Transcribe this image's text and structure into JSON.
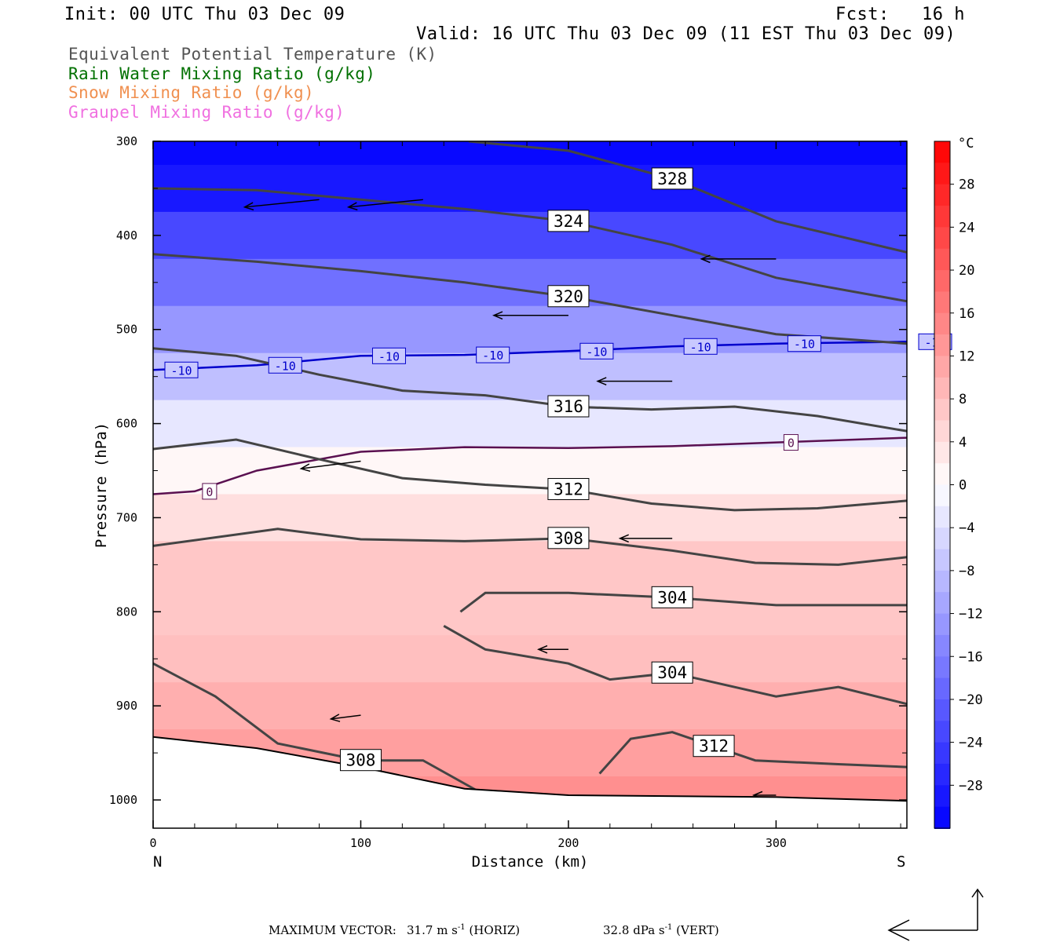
{
  "header": {
    "init": "Init: 00 UTC Thu 03 Dec 09",
    "fcst": "Fcst:   16 h",
    "valid": "Valid: 16 UTC Thu 03 Dec 09 (11 EST Thu 03 Dec 09)"
  },
  "fields": [
    {
      "label": "Equivalent Potential Temperature (K)",
      "color": "#555555"
    },
    {
      "label": "Rain Water Mixing Ratio (g/kg)",
      "color": "#007000"
    },
    {
      "label": "Snow Mixing Ratio (g/kg)",
      "color": "#f09050"
    },
    {
      "label": "Graupel Mixing Ratio (g/kg)",
      "color": "#f070e0"
    }
  ],
  "chart_data": {
    "type": "heatmap",
    "title": "",
    "xlabel": "Distance (km)",
    "ylabel": "Pressure (hPa)",
    "xlim": [
      0,
      363
    ],
    "ylim": [
      1030,
      300
    ],
    "y_scale": "linear, inverted",
    "x_ticks": [
      0,
      100,
      200,
      300
    ],
    "y_ticks": [
      300,
      400,
      500,
      600,
      700,
      800,
      900,
      1000
    ],
    "x_end_labels": {
      "left": "N",
      "right": "S"
    },
    "colorbar": {
      "unit": "°C",
      "ticks": [
        28,
        24,
        20,
        16,
        12,
        8,
        4,
        0,
        -4,
        -8,
        -12,
        -16,
        -20,
        -24,
        -28
      ],
      "range": [
        -32,
        32
      ]
    },
    "temperature_profile_degC": [
      {
        "p": 300,
        "t": -31
      },
      {
        "p": 350,
        "t": -29
      },
      {
        "p": 400,
        "t": -23
      },
      {
        "p": 450,
        "t": -18
      },
      {
        "p": 500,
        "t": -13
      },
      {
        "p": 550,
        "t": -8
      },
      {
        "p": 600,
        "t": -3
      },
      {
        "p": 650,
        "t": 1
      },
      {
        "p": 700,
        "t": 4
      },
      {
        "p": 750,
        "t": 7
      },
      {
        "p": 800,
        "t": 7
      },
      {
        "p": 850,
        "t": 8
      },
      {
        "p": 900,
        "t": 10
      },
      {
        "p": 950,
        "t": 12
      },
      {
        "p": 1000,
        "t": 14
      }
    ],
    "theta_e_contours": [
      {
        "value": 328,
        "points": [
          [
            152,
            300
          ],
          [
            200,
            310
          ],
          [
            250,
            340
          ],
          [
            300,
            385
          ],
          [
            363,
            418
          ]
        ]
      },
      {
        "value": 324,
        "points": [
          [
            0,
            350
          ],
          [
            50,
            352
          ],
          [
            100,
            362
          ],
          [
            150,
            372
          ],
          [
            200,
            385
          ],
          [
            250,
            410
          ],
          [
            300,
            445
          ],
          [
            363,
            470
          ]
        ]
      },
      {
        "value": 320,
        "points": [
          [
            0,
            420
          ],
          [
            50,
            428
          ],
          [
            100,
            438
          ],
          [
            150,
            450
          ],
          [
            200,
            465
          ],
          [
            250,
            485
          ],
          [
            300,
            505
          ],
          [
            363,
            515
          ]
        ]
      },
      {
        "value": 316,
        "points": [
          [
            0,
            520
          ],
          [
            40,
            528
          ],
          [
            80,
            548
          ],
          [
            120,
            565
          ],
          [
            160,
            570
          ],
          [
            200,
            582
          ],
          [
            240,
            585
          ],
          [
            280,
            582
          ],
          [
            320,
            592
          ],
          [
            363,
            608
          ]
        ]
      },
      {
        "value": 312,
        "points": [
          [
            0,
            627
          ],
          [
            40,
            617
          ],
          [
            80,
            638
          ],
          [
            120,
            658
          ],
          [
            160,
            665
          ],
          [
            200,
            670
          ],
          [
            240,
            685
          ],
          [
            280,
            692
          ],
          [
            320,
            690
          ],
          [
            363,
            682
          ]
        ]
      },
      {
        "value": 308,
        "points": [
          [
            0,
            730
          ],
          [
            60,
            712
          ],
          [
            100,
            723
          ],
          [
            150,
            725
          ],
          [
            200,
            722
          ],
          [
            250,
            735
          ],
          [
            290,
            748
          ],
          [
            330,
            750
          ],
          [
            363,
            742
          ]
        ]
      },
      {
        "value": 304,
        "points": [
          [
            148,
            800
          ],
          [
            160,
            780
          ],
          [
            200,
            780
          ],
          [
            250,
            785
          ],
          [
            300,
            793
          ],
          [
            363,
            793
          ]
        ]
      },
      {
        "value": 304,
        "points": [
          [
            140,
            815
          ],
          [
            160,
            840
          ],
          [
            200,
            855
          ],
          [
            220,
            872
          ],
          [
            250,
            865
          ],
          [
            300,
            890
          ],
          [
            330,
            880
          ],
          [
            363,
            898
          ]
        ]
      },
      {
        "value": 308,
        "points": [
          [
            0,
            855
          ],
          [
            30,
            890
          ],
          [
            60,
            940
          ],
          [
            100,
            958
          ],
          [
            130,
            958
          ],
          [
            160,
            995
          ]
        ]
      },
      {
        "value": 312,
        "points": [
          [
            215,
            972
          ],
          [
            230,
            935
          ],
          [
            250,
            928
          ],
          [
            270,
            943
          ],
          [
            290,
            958
          ],
          [
            330,
            962
          ],
          [
            363,
            965
          ]
        ]
      }
    ],
    "isotherms_degC": [
      {
        "value": -10,
        "color": "#0000cc",
        "points": [
          [
            0,
            543
          ],
          [
            50,
            538
          ],
          [
            100,
            528
          ],
          [
            150,
            527
          ],
          [
            200,
            523
          ],
          [
            250,
            518
          ],
          [
            300,
            515
          ],
          [
            363,
            513
          ]
        ]
      },
      {
        "value": 0,
        "color": "#5a1050",
        "points": [
          [
            0,
            675
          ],
          [
            20,
            672
          ],
          [
            50,
            650
          ],
          [
            100,
            630
          ],
          [
            150,
            625
          ],
          [
            200,
            626
          ],
          [
            250,
            624
          ],
          [
            300,
            620
          ],
          [
            363,
            615
          ]
        ]
      }
    ],
    "terrain_surface_hPa": [
      {
        "x": 0,
        "p": 933
      },
      {
        "x": 50,
        "p": 945
      },
      {
        "x": 100,
        "p": 965
      },
      {
        "x": 150,
        "p": 988
      },
      {
        "x": 200,
        "p": 995
      },
      {
        "x": 300,
        "p": 997
      },
      {
        "x": 363,
        "p": 1001
      }
    ],
    "wind_vectors": [
      {
        "x": 80,
        "p": 362,
        "u": -1,
        "v": 0.1
      },
      {
        "x": 130,
        "p": 362,
        "u": -1,
        "v": 0.1
      },
      {
        "x": 300,
        "p": 425,
        "u": -1,
        "v": 0
      },
      {
        "x": 200,
        "p": 485,
        "u": -1,
        "v": 0
      },
      {
        "x": 250,
        "p": 555,
        "u": -1,
        "v": 0
      },
      {
        "x": 100,
        "p": 640,
        "u": -0.8,
        "v": 0.1
      },
      {
        "x": 250,
        "p": 722,
        "u": -0.7,
        "v": 0
      },
      {
        "x": 200,
        "p": 840,
        "u": -0.4,
        "v": 0
      },
      {
        "x": 100,
        "p": 910,
        "u": -0.4,
        "v": 0.05
      },
      {
        "x": 300,
        "p": 995,
        "u": -0.3,
        "v": 0
      }
    ]
  },
  "footer": {
    "label": "MAXIMUM VECTOR:",
    "horiz_value": "31.7",
    "horiz_unit": "m s",
    "horiz_exp": "-1",
    "horiz_tag": "(HORIZ)",
    "vert_value": "32.8",
    "vert_unit": "dPa s",
    "vert_exp": "-1",
    "vert_tag": "(VERT)"
  }
}
